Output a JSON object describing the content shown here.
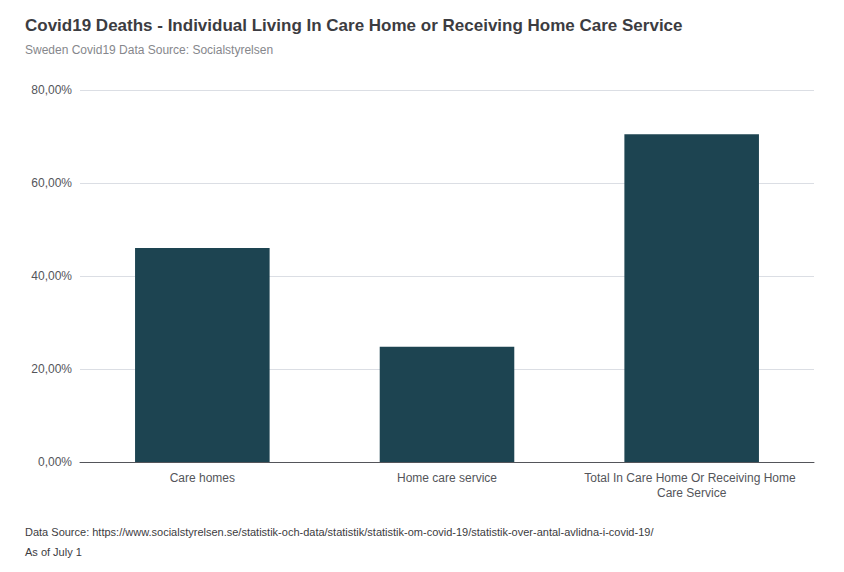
{
  "chart_data": {
    "type": "bar",
    "title": "Covid19 Deaths - Individual Living In Care Home or Receiving Home Care Service",
    "subtitle": "Sweden Covid19 Data Source: Socialstyrelsen",
    "categories": [
      "Care homes",
      "Home care service",
      "Total In Care Home Or Receiving Home Care Service"
    ],
    "values": [
      0.46,
      0.248,
      0.705
    ],
    "color": "#1d4451",
    "ylim": [
      0,
      0.8
    ],
    "yticks": [
      {
        "value": 0.0,
        "label": "0,00%"
      },
      {
        "value": 0.2,
        "label": "20,00%"
      },
      {
        "value": 0.4,
        "label": "40,00%"
      },
      {
        "value": 0.6,
        "label": "60,00%"
      },
      {
        "value": 0.8,
        "label": "80,00%"
      }
    ],
    "grid": true,
    "annotations": [
      "Data Source: https://www.socialstyrelsen.se/statistik-och-data/statistik/statistik-om-covid-19/statistik-over-antal-avlidna-i-covid-19/",
      "As of July 1"
    ]
  }
}
